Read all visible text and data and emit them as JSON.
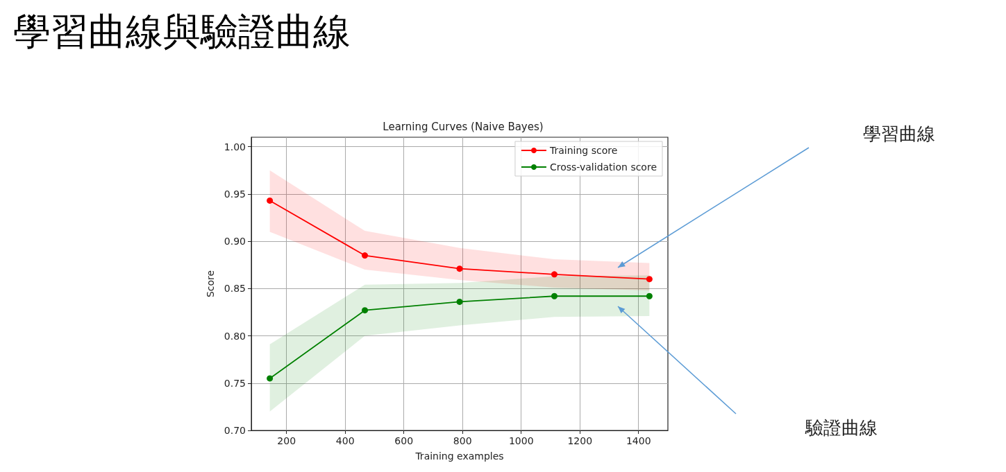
{
  "chart_data": {
    "type": "line",
    "title": "學習曲線與驗證曲線",
    "subtitle": "Learning Curves (Naive Bayes)",
    "xlabel": "Training examples",
    "ylabel": "Score",
    "xlim": [
      80,
      1500
    ],
    "xticks": [
      200,
      400,
      600,
      800,
      1000,
      1200,
      1400
    ],
    "ylim": [
      0.7,
      1.01
    ],
    "yticks": [
      {
        "value": 0.7,
        "label": "0.70"
      },
      0.75,
      {
        "value": 0.8,
        "label": "0.80"
      },
      0.85,
      {
        "value": 0.9,
        "label": "0.90"
      },
      0.95,
      {
        "value": 1.0,
        "label": "1.00"
      }
    ],
    "grid": true,
    "legend": "top right",
    "marker": "circle",
    "line_style": "solid",
    "series": [
      {
        "name": "Training score",
        "color": "#ff0000",
        "x": [
          143,
          467,
          790,
          1113,
          1437
        ],
        "values": [
          0.943,
          0.885,
          0.871,
          0.865,
          0.86
        ],
        "lower": [
          0.91,
          0.87,
          0.859,
          0.851,
          0.848
        ],
        "upper": [
          0.975,
          0.911,
          0.893,
          0.881,
          0.877
        ]
      },
      {
        "name": "Cross-validation score",
        "color": "#008000",
        "x": [
          143,
          467,
          790,
          1113,
          1437
        ],
        "values": [
          0.755,
          0.827,
          0.836,
          0.842,
          0.842
        ],
        "lower": [
          0.72,
          0.8,
          0.811,
          0.82,
          0.821
        ],
        "upper": [
          0.791,
          0.854,
          0.856,
          0.863,
          0.864
        ]
      }
    ],
    "annotations": [
      "學習曲線",
      "驗證曲線"
    ]
  }
}
